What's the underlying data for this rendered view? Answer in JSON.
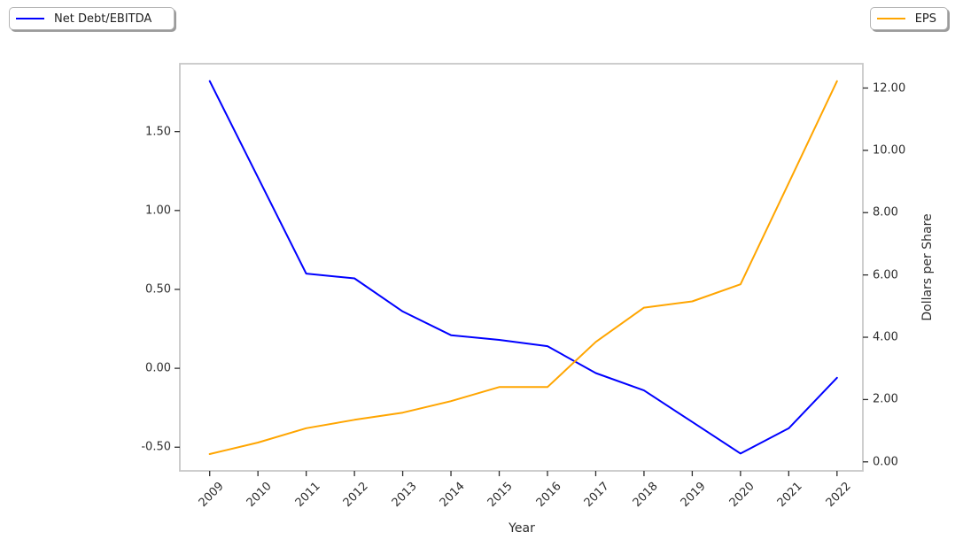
{
  "figure": {
    "background": "#ffffff",
    "legend_left": {
      "label": "Net Debt/EBITDA",
      "color": "#0000ff"
    },
    "legend_right": {
      "label": "EPS",
      "color": "#ffa500"
    }
  },
  "chart_data": {
    "type": "line",
    "title": "",
    "xlabel": "Year",
    "x": [
      2009,
      2010,
      2011,
      2012,
      2013,
      2014,
      2015,
      2016,
      2017,
      2018,
      2019,
      2020,
      2021,
      2022
    ],
    "series": [
      {
        "name": "Net Debt/EBITDA",
        "axis": "left",
        "color": "#0000ff",
        "values": [
          1.82,
          1.21,
          0.6,
          0.57,
          0.36,
          0.21,
          0.18,
          0.14,
          -0.03,
          -0.14,
          -0.34,
          -0.54,
          -0.38,
          -0.06
        ]
      },
      {
        "name": "EPS",
        "axis": "right",
        "color": "#ffa500",
        "values": [
          0.25,
          0.62,
          1.08,
          1.35,
          1.58,
          1.95,
          2.4,
          2.4,
          3.85,
          4.95,
          5.15,
          5.7,
          8.95,
          12.22
        ]
      }
    ],
    "axes": {
      "left": {
        "label": "",
        "ticks": [
          -0.5,
          0.0,
          0.5,
          1.0,
          1.5
        ],
        "ylim": [
          -0.65,
          1.93
        ]
      },
      "right": {
        "label": "Dollars per Share",
        "ticks": [
          0.0,
          2.0,
          4.0,
          6.0,
          8.0,
          10.0,
          12.0
        ],
        "ylim": [
          -0.29,
          12.78
        ]
      }
    },
    "grid": false,
    "legend_position": "outside top corners",
    "spine_color": "#c8c8c8"
  }
}
